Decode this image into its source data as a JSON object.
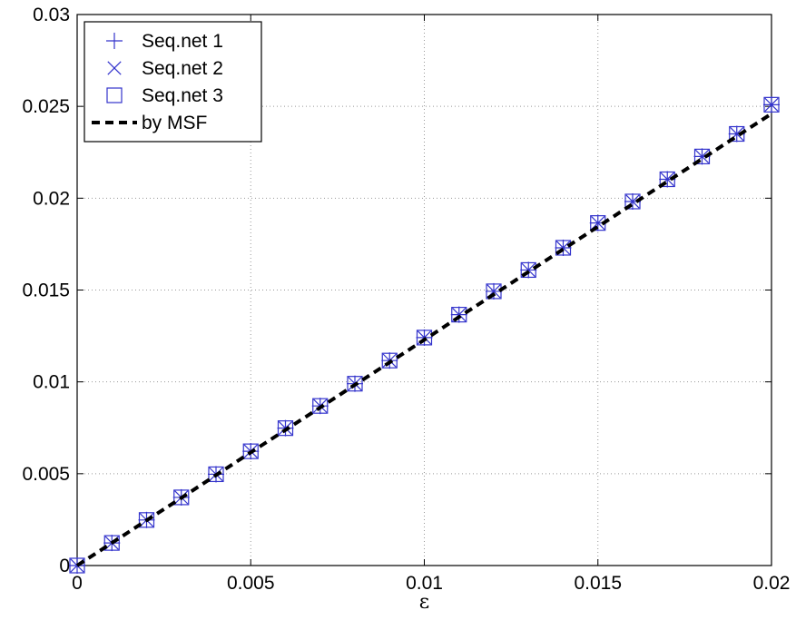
{
  "chart_data": {
    "type": "line",
    "title": "",
    "xlabel": "ε",
    "ylabel": "",
    "xlim": [
      0,
      0.02
    ],
    "ylim": [
      0,
      0.03
    ],
    "grid": true,
    "legend_position": "top-left",
    "x_ticks": [
      "0",
      "0.005",
      "0.01",
      "0.015",
      "0.02"
    ],
    "y_ticks": [
      "0",
      "0.005",
      "0.01",
      "0.015",
      "0.02",
      "0.025",
      "0.03"
    ],
    "x": [
      0,
      0.001,
      0.002,
      0.003,
      0.004,
      0.005,
      0.006,
      0.007,
      0.008,
      0.009,
      0.01,
      0.011,
      0.012,
      0.013,
      0.014,
      0.015,
      0.016,
      0.017,
      0.018,
      0.019,
      0.02
    ],
    "series": [
      {
        "name": "Seq.net 1",
        "marker": "plus",
        "color": "#3333cc",
        "values": [
          0,
          0.00123,
          0.00248,
          0.00371,
          0.00497,
          0.00622,
          0.00748,
          0.00869,
          0.0099,
          0.01116,
          0.01241,
          0.01366,
          0.01493,
          0.01609,
          0.0173,
          0.01865,
          0.01982,
          0.02103,
          0.02227,
          0.0235,
          0.02509
        ]
      },
      {
        "name": "Seq.net 2",
        "marker": "x",
        "color": "#3333cc",
        "values": [
          0,
          0.00123,
          0.00248,
          0.00371,
          0.00497,
          0.00622,
          0.00748,
          0.00869,
          0.0099,
          0.01116,
          0.01241,
          0.01366,
          0.01493,
          0.01609,
          0.0173,
          0.01865,
          0.01982,
          0.02103,
          0.02227,
          0.0235,
          0.02509
        ]
      },
      {
        "name": "Seq.net 3",
        "marker": "square",
        "color": "#3333cc",
        "values": [
          0,
          0.00123,
          0.00248,
          0.00371,
          0.00497,
          0.00622,
          0.00748,
          0.00869,
          0.0099,
          0.01116,
          0.01241,
          0.01366,
          0.01493,
          0.01609,
          0.0173,
          0.01865,
          0.01982,
          0.02103,
          0.02227,
          0.0235,
          0.02509
        ]
      },
      {
        "name": "by MSF",
        "style": "dashed-line",
        "color": "#000000",
        "values": [
          0,
          0.00123,
          0.00246,
          0.00368,
          0.00492,
          0.00616,
          0.00738,
          0.0086,
          0.00984,
          0.01106,
          0.01229,
          0.01353,
          0.01476,
          0.01599,
          0.01722,
          0.01845,
          0.01968,
          0.02091,
          0.02214,
          0.02337,
          0.0246
        ]
      }
    ]
  }
}
